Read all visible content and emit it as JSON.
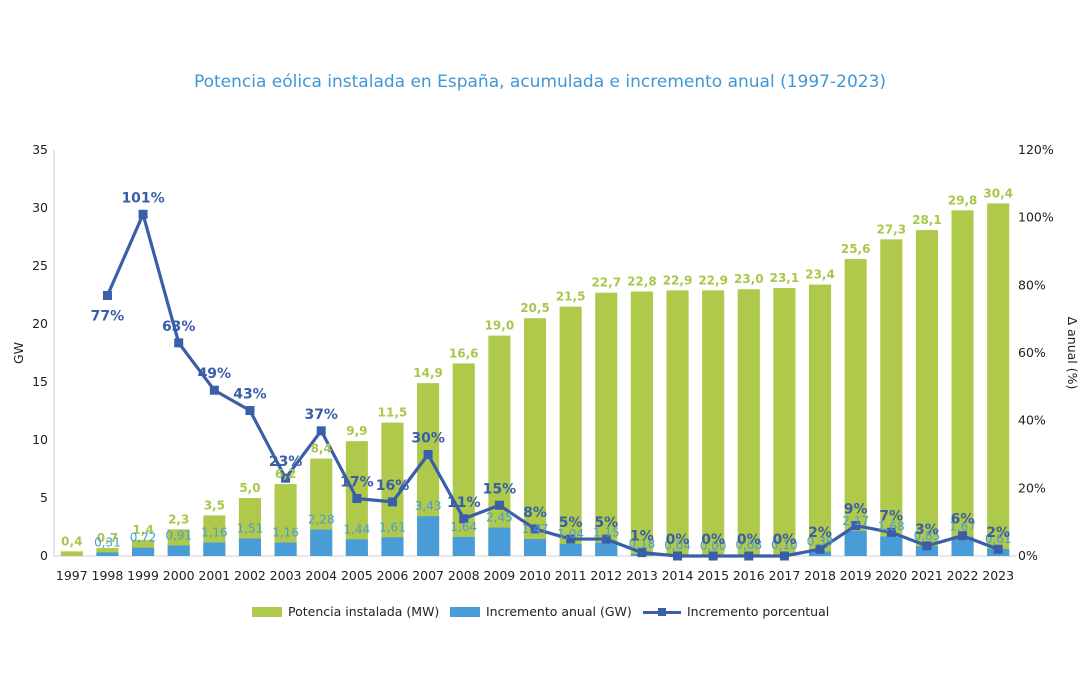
{
  "title": "Potencia eólica instalada en España, acumulada e incremento anual (1997-2023)",
  "legend": {
    "total": "Potencia instalada (MW)",
    "increment": "Incremento anual (GW)",
    "percent": "Incremento porcentual"
  },
  "colors": {
    "total": "#afc94a",
    "increment": "#4a9cd8",
    "percent": "#3a5ea8",
    "title": "#3f97d6"
  },
  "chart_data": {
    "type": "bar",
    "title": "Potencia eólica instalada en España, acumulada e incremento anual (1997-2023)",
    "xlabel": "",
    "ylabel": "GW",
    "y2label": "Δ anual (%)",
    "ylim": [
      0,
      35
    ],
    "y2lim": [
      0,
      120
    ],
    "yticks": [
      0,
      5,
      10,
      15,
      20,
      25,
      30,
      35
    ],
    "y2ticks": [
      "0%",
      "20%",
      "40%",
      "60%",
      "80%",
      "100%",
      "120%"
    ],
    "grid": false,
    "legend_position": "bottom",
    "categories": [
      "1997",
      "1998",
      "1999",
      "2000",
      "2001",
      "2002",
      "2003",
      "2004",
      "2005",
      "2006",
      "2007",
      "2008",
      "2009",
      "2010",
      "2011",
      "2012",
      "2013",
      "2014",
      "2015",
      "2016",
      "2017",
      "2018",
      "2019",
      "2020",
      "2021",
      "2022",
      "2023"
    ],
    "series": [
      {
        "name": "Potencia instalada (MW)",
        "type": "bar",
        "values": [
          0.4,
          0.7,
          1.4,
          2.3,
          3.5,
          5.0,
          6.2,
          8.4,
          9.9,
          11.5,
          14.9,
          16.6,
          19.0,
          20.5,
          21.5,
          22.7,
          22.8,
          22.9,
          22.9,
          23.0,
          23.1,
          23.4,
          25.6,
          27.3,
          28.1,
          29.8,
          30.4
        ],
        "labels": [
          "0,4",
          "0,7",
          "1,4",
          "2,3",
          "3,5",
          "5,0",
          "6,2",
          "8,4",
          "9,9",
          "11,5",
          "14,9",
          "16,6",
          "19,0",
          "20,5",
          "21,5",
          "22,7",
          "22,8",
          "22,9",
          "22,9",
          "23,0",
          "23,1",
          "23,4",
          "25,6",
          "27,3",
          "28,1",
          "29,8",
          "30,4"
        ]
      },
      {
        "name": "Incremento anual (GW)",
        "type": "bar",
        "values": [
          null,
          0.31,
          0.72,
          0.91,
          1.16,
          1.51,
          1.16,
          2.28,
          1.44,
          1.61,
          3.43,
          1.64,
          2.45,
          1.47,
          1.04,
          1.15,
          0.18,
          0.04,
          0.0,
          0.08,
          0.1,
          0.39,
          2.17,
          1.68,
          0.85,
          1.67,
          0.61
        ],
        "labels": [
          "",
          "0,31",
          "0,72",
          "0,91",
          "1,16",
          "1,51",
          "1,16",
          "2,28",
          "1,44",
          "1,61",
          "3,43",
          "1,64",
          "2,45",
          "1,47",
          "1,04",
          "1,15",
          "0,18",
          "0,04",
          "0,00",
          "0,08",
          "0,10",
          "0,39",
          "2,17",
          "1,68",
          "0,85",
          "1,67",
          "0,61"
        ]
      },
      {
        "name": "Incremento porcentual",
        "type": "line",
        "axis": "right",
        "values": [
          null,
          77,
          101,
          63,
          49,
          43,
          23,
          37,
          17,
          16,
          30,
          11,
          15,
          8,
          5,
          5,
          1,
          0,
          0,
          0,
          0,
          2,
          9,
          7,
          3,
          6,
          2
        ],
        "labels": [
          "",
          "77%",
          "101%",
          "63%",
          "49%",
          "43%",
          "23%",
          "37%",
          "17%",
          "16%",
          "30%",
          "11%",
          "15%",
          "8%",
          "5%",
          "5%",
          "1%",
          "0%",
          "0%",
          "0%",
          "0%",
          "2%",
          "9%",
          "7%",
          "3%",
          "6%",
          "2%"
        ]
      }
    ]
  }
}
